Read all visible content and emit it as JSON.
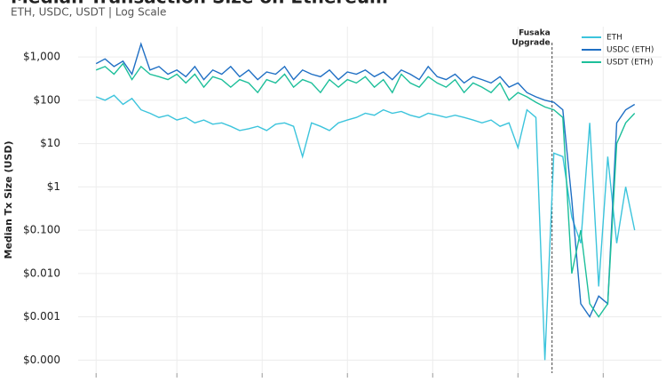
{
  "chart_data": {
    "type": "line",
    "title": "Median Transaction Size on Ethereum",
    "subtitle": "ETH, USDC, USDT | Log Scale",
    "y_label": "Median Tx Size (USD)",
    "log_y": true,
    "grid": true,
    "legend": "top-right",
    "x": [
      0,
      1,
      2,
      3,
      4,
      5,
      6,
      7,
      8,
      9,
      10,
      11,
      12,
      13,
      14,
      15,
      16,
      17,
      18,
      19,
      20,
      21,
      22,
      23,
      24,
      25,
      26,
      27,
      28,
      29,
      30,
      31,
      32,
      33,
      34,
      35,
      36,
      37,
      38,
      39,
      40,
      41,
      42,
      43,
      44,
      45,
      46,
      47,
      48,
      49,
      50,
      51,
      52,
      53,
      54,
      55,
      56,
      57,
      58,
      59,
      60
    ],
    "xlim": [
      -2,
      63
    ],
    "xticks": [
      0,
      9,
      18.5,
      28,
      37.5,
      47,
      56.5
    ],
    "ylim": [
      5e-05,
      5000
    ],
    "yticks": [
      {
        "value": 1000,
        "label": "$1,000"
      },
      {
        "value": 100,
        "label": "$100"
      },
      {
        "value": 10,
        "label": "$10"
      },
      {
        "value": 1,
        "label": "$1"
      },
      {
        "value": 0.1,
        "label": "$0.100"
      },
      {
        "value": 0.01,
        "label": "$0.010"
      },
      {
        "value": 0.001,
        "label": "$0.001"
      },
      {
        "value": 0.0001,
        "label": "$0.000"
      }
    ],
    "annotation": {
      "x": 50.8,
      "text": [
        "Fusaka",
        "Upgrade"
      ]
    },
    "series": [
      {
        "name": "ETH",
        "color": "#3cc4dc",
        "values": [
          120,
          100,
          130,
          80,
          110,
          60,
          50,
          40,
          45,
          35,
          40,
          30,
          35,
          28,
          30,
          25,
          20,
          22,
          25,
          20,
          28,
          30,
          25,
          5,
          30,
          25,
          20,
          30,
          35,
          40,
          50,
          45,
          60,
          50,
          55,
          45,
          40,
          50,
          45,
          40,
          45,
          40,
          35,
          30,
          35,
          25,
          30,
          8,
          60,
          40,
          0.0001,
          6,
          5,
          0.2,
          0.05,
          30,
          0.005,
          5,
          0.05,
          1,
          0.1
        ]
      },
      {
        "name": "USDC (ETH)",
        "color": "#1f6fc4",
        "values": [
          700,
          900,
          600,
          800,
          400,
          2000,
          500,
          600,
          400,
          500,
          350,
          600,
          300,
          500,
          400,
          600,
          350,
          500,
          300,
          450,
          400,
          600,
          300,
          500,
          400,
          350,
          500,
          300,
          450,
          400,
          500,
          350,
          450,
          300,
          500,
          400,
          300,
          600,
          350,
          300,
          400,
          250,
          350,
          300,
          250,
          350,
          200,
          250,
          150,
          120,
          100,
          90,
          60,
          0.5,
          0.002,
          0.001,
          0.003,
          0.002,
          30,
          60,
          80
        ]
      },
      {
        "name": "USDT (ETH)",
        "color": "#1dbf9a",
        "values": [
          500,
          600,
          400,
          700,
          300,
          600,
          400,
          350,
          300,
          400,
          250,
          400,
          200,
          350,
          300,
          200,
          300,
          250,
          150,
          300,
          250,
          400,
          200,
          300,
          250,
          150,
          300,
          200,
          300,
          250,
          350,
          200,
          300,
          150,
          400,
          250,
          200,
          350,
          250,
          200,
          300,
          150,
          250,
          200,
          150,
          250,
          100,
          150,
          120,
          90,
          70,
          60,
          40,
          0.01,
          0.1,
          0.002,
          0.001,
          0.002,
          10,
          30,
          50
        ]
      }
    ]
  }
}
